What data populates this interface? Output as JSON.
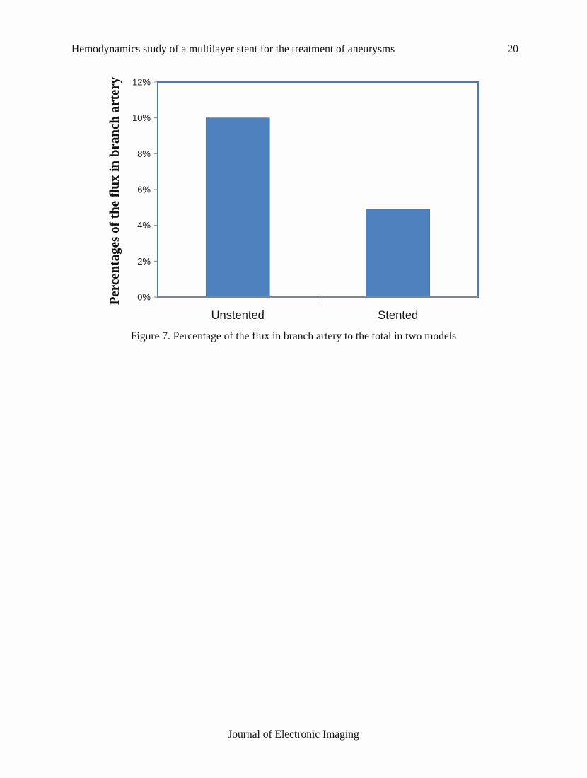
{
  "header": {
    "running_title": "Hemodynamics study of a multilayer stent for the treatment of aneurysms",
    "page_number": "20"
  },
  "figure": {
    "caption": "Figure 7. Percentage of the flux in branch artery to the total in two models"
  },
  "chart_data": {
    "type": "bar",
    "categories": [
      "Unstented",
      "Stented"
    ],
    "values": [
      10.0,
      4.9
    ],
    "ylabel": "Percentages of the flux in branch artery",
    "xlabel": "",
    "ylim": [
      0,
      12
    ],
    "yticks": [
      0,
      2,
      4,
      6,
      8,
      10,
      12
    ],
    "ytick_labels": [
      "0%",
      "2%",
      "4%",
      "6%",
      "8%",
      "10%",
      "12%"
    ],
    "grid": false,
    "legend": "none",
    "bar_color": "#4f81bd",
    "frame_color": "#4a7ab8"
  },
  "footer": {
    "journal": "Journal of Electronic Imaging"
  }
}
